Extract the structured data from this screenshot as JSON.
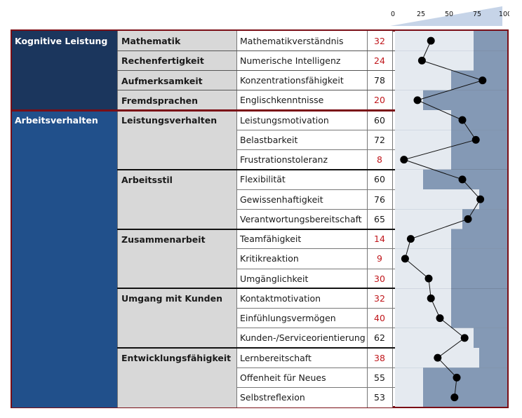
{
  "chart_data": {
    "type": "profile",
    "scale": {
      "min": 0,
      "max": 100,
      "ticks": [
        "0",
        "25",
        "50",
        "75",
        "100"
      ]
    },
    "categories": [
      {
        "name": "Kognitive Leistung",
        "color": "#1b365d",
        "subcategories": [
          {
            "name": "Mathematik",
            "items": [
              {
                "label": "Mathematikverständnis",
                "value": 32,
                "norm": [
                  0,
                  70
                ]
              }
            ]
          },
          {
            "name": "Rechenfertigkeit",
            "items": [
              {
                "label": "Numerische Intelligenz",
                "value": 24,
                "norm": [
                  0,
                  70
                ]
              }
            ]
          },
          {
            "name": "Aufmerksamkeit",
            "items": [
              {
                "label": "Konzentrationsfähigkeit",
                "value": 78,
                "norm": [
                  0,
                  50
                ]
              }
            ]
          },
          {
            "name": "Fremdsprachen",
            "items": [
              {
                "label": "Englischkenntnisse",
                "value": 20,
                "norm": [
                  0,
                  25
                ]
              }
            ]
          }
        ]
      },
      {
        "name": "Arbeitsverhalten",
        "color": "#21508b",
        "subcategories": [
          {
            "name": "Leistungsverhalten",
            "items": [
              {
                "label": "Leistungsmotivation",
                "value": 60,
                "norm": [
                  0,
                  50
                ]
              },
              {
                "label": "Belastbarkeit",
                "value": 72,
                "norm": [
                  0,
                  50
                ]
              },
              {
                "label": "Frustrationstoleranz",
                "value": 8,
                "norm": [
                  0,
                  50
                ]
              }
            ]
          },
          {
            "name": "Arbeitsstil",
            "items": [
              {
                "label": "Flexibilität",
                "value": 60,
                "norm": [
                  0,
                  25
                ]
              },
              {
                "label": "Gewissenhaftigkeit",
                "value": 76,
                "norm": [
                  0,
                  75
                ]
              },
              {
                "label": "Verantwortungsbereitschaft",
                "value": 65,
                "norm": [
                  0,
                  60
                ]
              }
            ]
          },
          {
            "name": "Zusammenarbeit",
            "items": [
              {
                "label": "Teamfähigkeit",
                "value": 14,
                "norm": [
                  0,
                  50
                ]
              },
              {
                "label": "Kritikreaktion",
                "value": 9,
                "norm": [
                  0,
                  50
                ]
              },
              {
                "label": "Umgänglichkeit",
                "value": 30,
                "norm": [
                  0,
                  50
                ]
              }
            ]
          },
          {
            "name": "Umgang mit Kunden",
            "items": [
              {
                "label": "Kontaktmotivation",
                "value": 32,
                "norm": [
                  0,
                  50
                ]
              },
              {
                "label": "Einfühlungsvermögen",
                "value": 40,
                "norm": [
                  0,
                  50
                ]
              },
              {
                "label": "Kunden-/Serviceorientierung",
                "value": 62,
                "norm": [
                  0,
                  70
                ]
              }
            ]
          },
          {
            "name": "Entwicklungsfähigkeit",
            "items": [
              {
                "label": "Lernbereitschaft",
                "value": 38,
                "norm": [
                  0,
                  75
                ]
              },
              {
                "label": "Offenheit für Neues",
                "value": 55,
                "norm": [
                  0,
                  25
                ]
              },
              {
                "label": "Selbstreflexion",
                "value": 53,
                "norm": [
                  0,
                  25
                ]
              }
            ]
          }
        ]
      }
    ]
  },
  "colors": {
    "border": "#7a0e16",
    "low_value": "#c0171c",
    "norm_light": "#e5eaf0",
    "band_dark": "#8499b5",
    "point": "#000000",
    "scale_wedge": "#c6d4e8"
  }
}
